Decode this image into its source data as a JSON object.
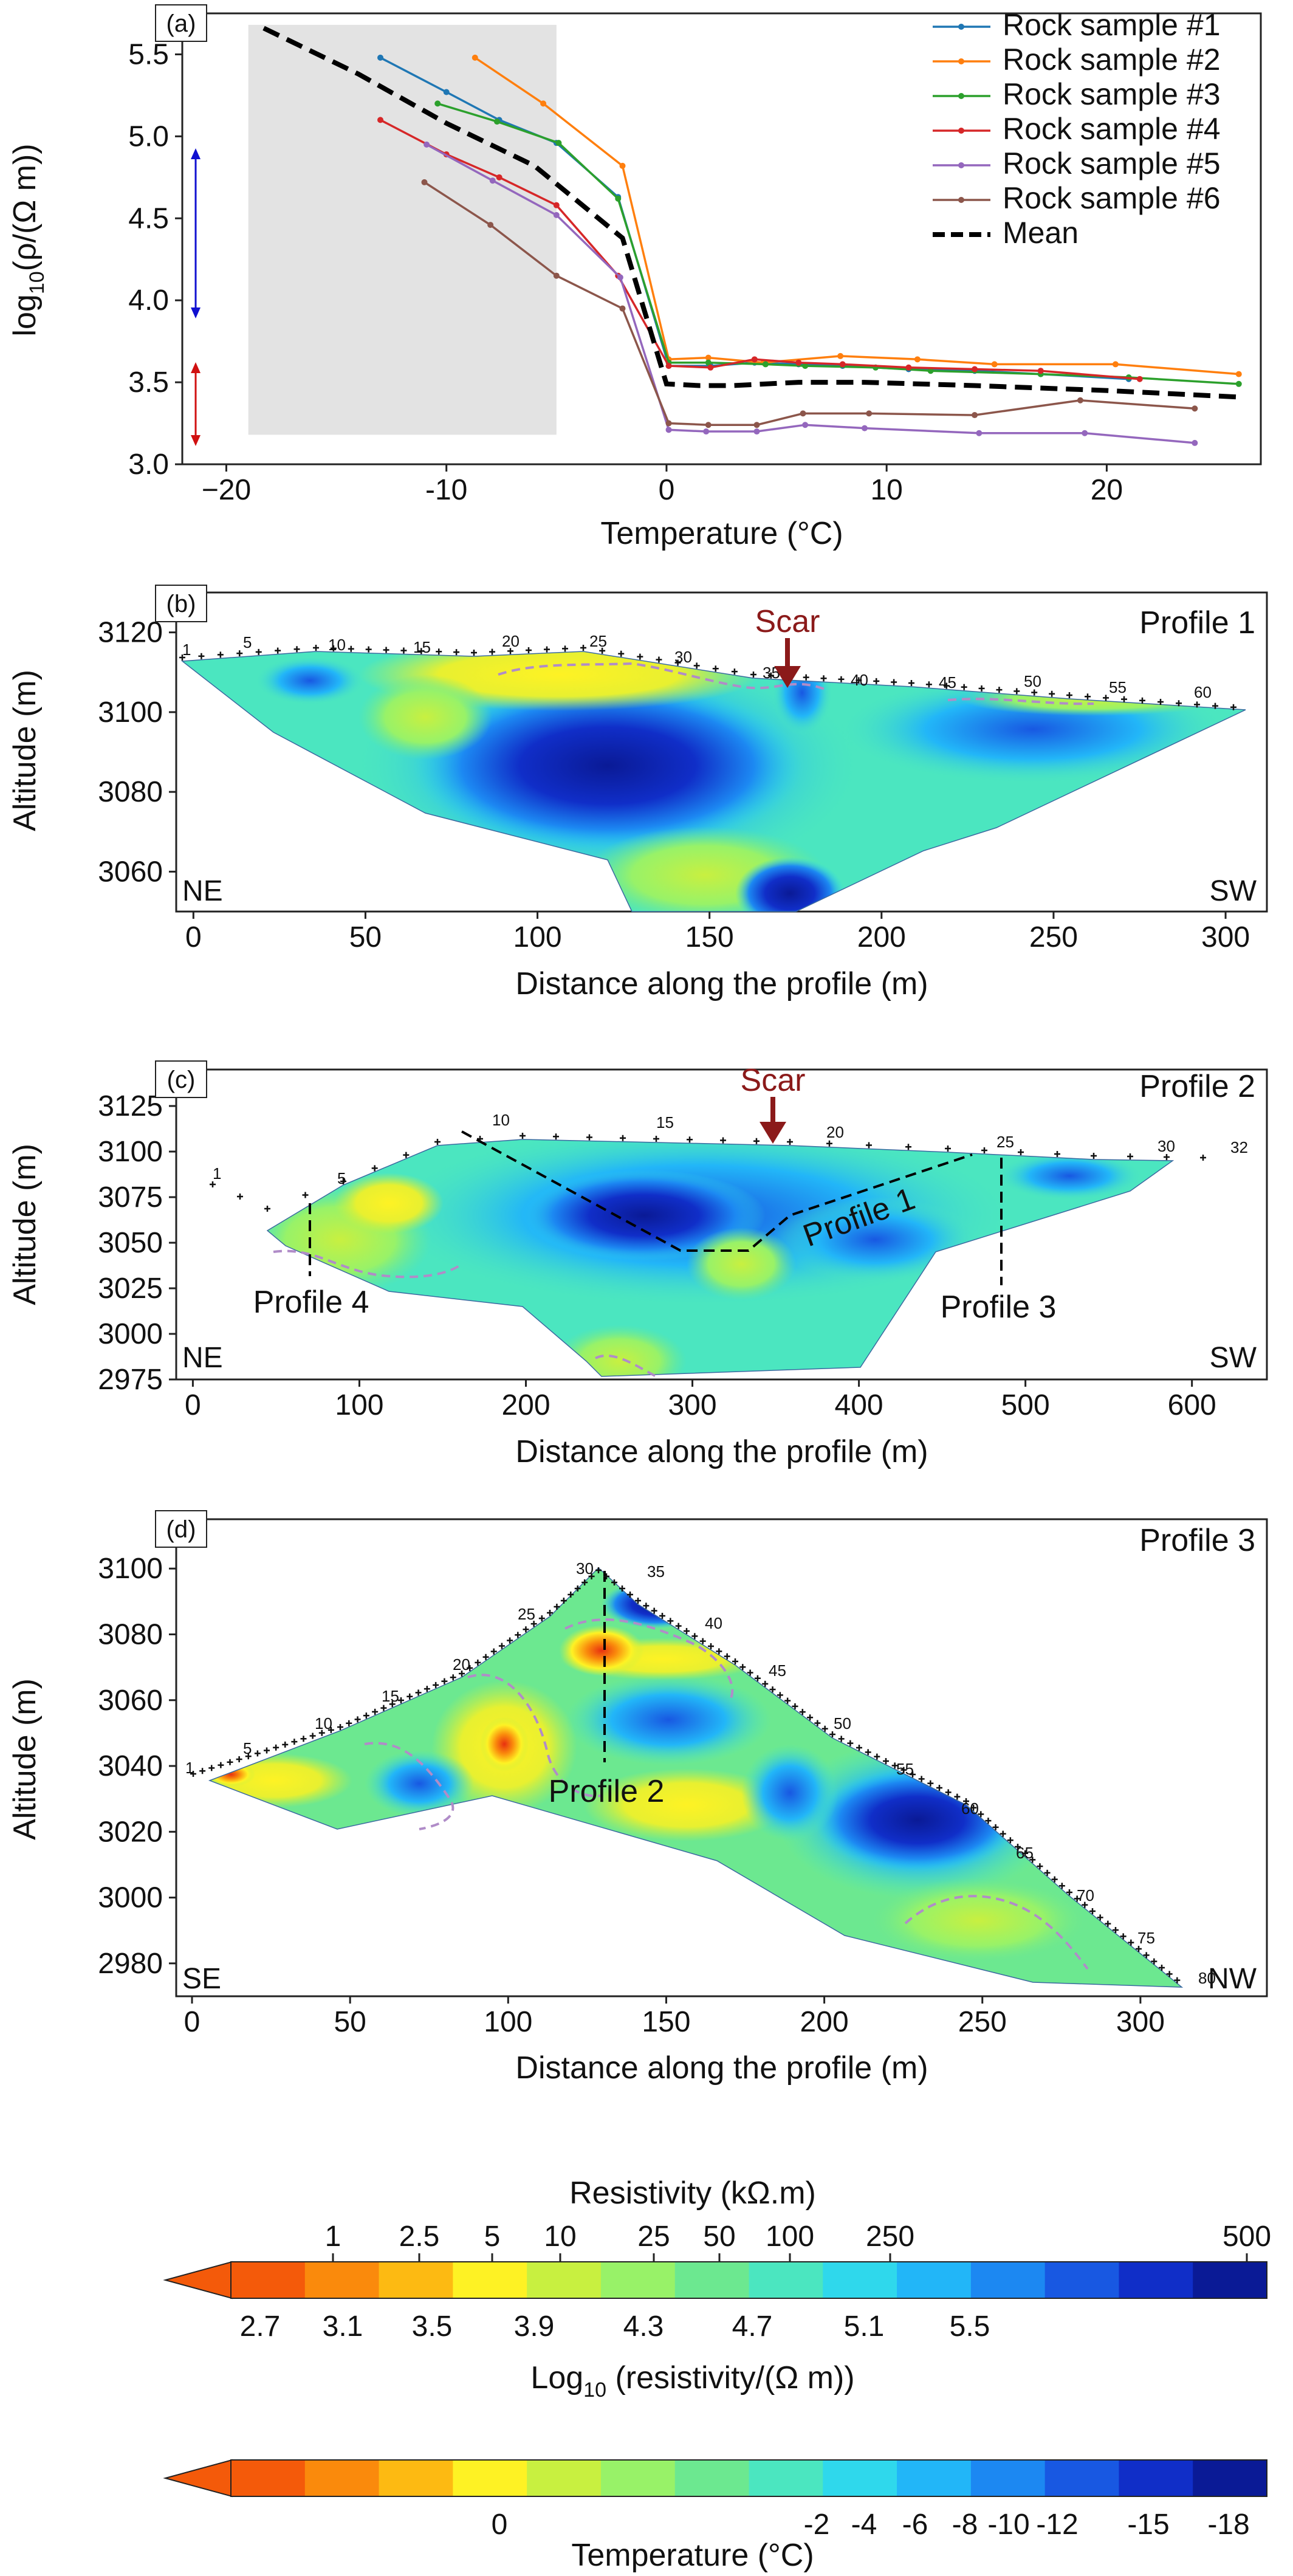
{
  "colors": {
    "series": [
      "#1f77b4",
      "#ff7f0e",
      "#2ca02c",
      "#d62728",
      "#9467bd",
      "#8c564b"
    ],
    "mean": "#000000",
    "shade": "#e3e3e3",
    "arrow_blue": "#1010d0",
    "arrow_red": "#d01010",
    "scar": "#8b1a1a",
    "contour_dash": "#b08cc8",
    "colormap": [
      "#f45a0a",
      "#fa8a0c",
      "#fdba12",
      "#fef224",
      "#c8f040",
      "#98f268",
      "#6ce890",
      "#4be6c0",
      "#2fd8ec",
      "#22b6f8",
      "#1c88f2",
      "#1858e2",
      "#102ec8",
      "#0a1a96"
    ]
  },
  "chart_data": [
    {
      "panel": "(a)",
      "type": "line",
      "xlabel": "Temperature (°C)",
      "ylabel_main": "log",
      "ylabel_sub": "10",
      "ylabel_rest": "(ρ/(Ω m))",
      "xlim": [
        -22,
        27
      ],
      "ylim": [
        3.0,
        5.75
      ],
      "xticks": [
        -20,
        -10,
        0,
        10,
        20
      ],
      "xtick_labels": [
        "−20",
        "-10",
        "0",
        "10",
        "20"
      ],
      "yticks": [
        3.0,
        3.5,
        4.0,
        4.5,
        5.0,
        5.5
      ],
      "ytick_labels": [
        "3.0",
        "3.5",
        "4.0",
        "4.5",
        "5.0",
        "5.5"
      ],
      "grid": false,
      "legend_position": "top-right",
      "shaded_region": {
        "x": [
          -19,
          -5
        ],
        "y": [
          3.18,
          5.68
        ]
      },
      "series": [
        {
          "name": "Rock sample #1",
          "x": [
            -13,
            -10,
            -7.6,
            -5,
            -2.2,
            0.1,
            2,
            4,
            6,
            8,
            11,
            14,
            17,
            21
          ],
          "y": [
            5.48,
            5.27,
            5.1,
            4.96,
            4.63,
            3.6,
            3.6,
            3.62,
            3.61,
            3.6,
            3.58,
            3.57,
            3.55,
            3.52
          ]
        },
        {
          "name": "Rock sample #2",
          "x": [
            -8.7,
            -5.6,
            -2.0,
            0.1,
            1.9,
            4.4,
            7.9,
            11.4,
            14.9,
            20.4,
            26.0
          ],
          "y": [
            5.48,
            5.2,
            4.82,
            3.64,
            3.65,
            3.62,
            3.66,
            3.64,
            3.61,
            3.61,
            3.55
          ]
        },
        {
          "name": "Rock sample #3",
          "x": [
            -10.4,
            -7.7,
            -4.9,
            -2.2,
            0.1,
            1.9,
            4.5,
            6.3,
            9.5,
            12.0,
            17.0,
            21.0,
            26.0
          ],
          "y": [
            5.2,
            5.09,
            4.96,
            4.62,
            3.62,
            3.62,
            3.61,
            3.6,
            3.59,
            3.57,
            3.55,
            3.53,
            3.49
          ]
        },
        {
          "name": "Rock sample #4",
          "x": [
            -13.0,
            -10.0,
            -7.6,
            -5.0,
            -2.2,
            0.1,
            2.0,
            4.0,
            6.0,
            8.0,
            11.0,
            14.0,
            17.0,
            21.5
          ],
          "y": [
            5.1,
            4.89,
            4.75,
            4.58,
            4.15,
            3.6,
            3.59,
            3.64,
            3.62,
            3.61,
            3.59,
            3.58,
            3.57,
            3.52
          ]
        },
        {
          "name": "Rock sample #5",
          "x": [
            -10.9,
            -7.9,
            -5.0,
            -2.1,
            0.1,
            1.8,
            4.1,
            6.3,
            9.0,
            14.2,
            19.0,
            24.0
          ],
          "y": [
            4.95,
            4.73,
            4.52,
            4.14,
            3.21,
            3.2,
            3.2,
            3.24,
            3.22,
            3.19,
            3.19,
            3.13
          ]
        },
        {
          "name": "Rock sample #6",
          "x": [
            -11.0,
            -8.0,
            -5.0,
            -2.0,
            0.1,
            1.9,
            4.1,
            6.2,
            9.2,
            14.0,
            18.8,
            24.0
          ],
          "y": [
            4.72,
            4.46,
            4.15,
            3.95,
            3.25,
            3.24,
            3.24,
            3.31,
            3.31,
            3.3,
            3.39,
            3.34
          ]
        },
        {
          "name": "Mean",
          "style": "dashed",
          "x": [
            -18.3,
            -14,
            -10,
            -6,
            -2,
            0,
            1.5,
            3,
            6,
            9,
            14,
            20,
            26
          ],
          "y": [
            5.66,
            5.38,
            5.08,
            4.82,
            4.38,
            3.49,
            3.48,
            3.48,
            3.5,
            3.5,
            3.48,
            3.45,
            3.41
          ]
        }
      ]
    },
    {
      "panel": "(b)",
      "type": "heatmap",
      "title": "Profile 1",
      "xlabel": "Distance along the profile (m)",
      "ylabel": "Altitude (m)",
      "xlim": [
        -5,
        312
      ],
      "ylim": [
        3050,
        3130
      ],
      "xticks": [
        0,
        50,
        100,
        150,
        200,
        250,
        300
      ],
      "yticks": [
        3060,
        3080,
        3100,
        3120
      ],
      "left_label": "NE",
      "right_label": "SW",
      "annotation": "Scar",
      "annotation_x": 173,
      "electrode_labels": [
        "1",
        "5",
        "10",
        "15",
        "20",
        "25",
        "30",
        "35",
        "40",
        "45",
        "50",
        "55",
        "60"
      ]
    },
    {
      "panel": "(c)",
      "type": "heatmap",
      "title": "Profile 2",
      "xlabel": "Distance along the profile (m)",
      "ylabel": "Altitude (m)",
      "xlim": [
        -10,
        645
      ],
      "ylim": [
        2975,
        3145
      ],
      "xticks": [
        0,
        100,
        200,
        300,
        400,
        500,
        600
      ],
      "yticks": [
        2975,
        3000,
        3025,
        3050,
        3075,
        3100,
        3125
      ],
      "left_label": "NE",
      "right_label": "SW",
      "annotation": "Scar",
      "annotation_x": 352,
      "profile_labels": [
        "Profile 4",
        "Profile 1",
        "Profile 3"
      ],
      "electrode_labels": [
        "1",
        "5",
        "10",
        "15",
        "20",
        "25",
        "30",
        "32"
      ]
    },
    {
      "panel": "(d)",
      "type": "heatmap",
      "title": "Profile 3",
      "xlabel": "Distance along the profile (m)",
      "ylabel": "Altitude (m)",
      "xlim": [
        -5,
        340
      ],
      "ylim": [
        2970,
        3115
      ],
      "xticks": [
        0,
        50,
        100,
        150,
        200,
        250,
        300
      ],
      "yticks": [
        2980,
        3000,
        3020,
        3040,
        3060,
        3080,
        3100
      ],
      "left_label": "SE",
      "right_label": "NW",
      "profile_label": "Profile 2",
      "electrode_labels": [
        "1",
        "5",
        "10",
        "15",
        "20",
        "25",
        "30",
        "35",
        "40",
        "45",
        "50",
        "55",
        "60",
        "65",
        "70",
        "75",
        "80"
      ]
    }
  ],
  "colorbars": {
    "resistivity": {
      "top_title": "Resistivity (kΩ.m)",
      "top_ticks": [
        "1",
        "2.5",
        "5",
        "10",
        "25",
        "50",
        "100",
        "250",
        "500"
      ],
      "bottom_ticks": [
        "2.7",
        "3.1",
        "3.5",
        "3.9",
        "4.3",
        "4.7",
        "5.1",
        "5.5"
      ],
      "bottom_title_main": "Log",
      "bottom_title_sub": "10",
      "bottom_title_rest": " (resistivity/(Ω m))"
    },
    "temperature": {
      "ticks": [
        "0",
        "-2",
        "-4",
        "-6",
        "-8",
        "-10",
        "-12",
        "-15",
        "-18"
      ],
      "title": "Temperature (°C)"
    }
  }
}
